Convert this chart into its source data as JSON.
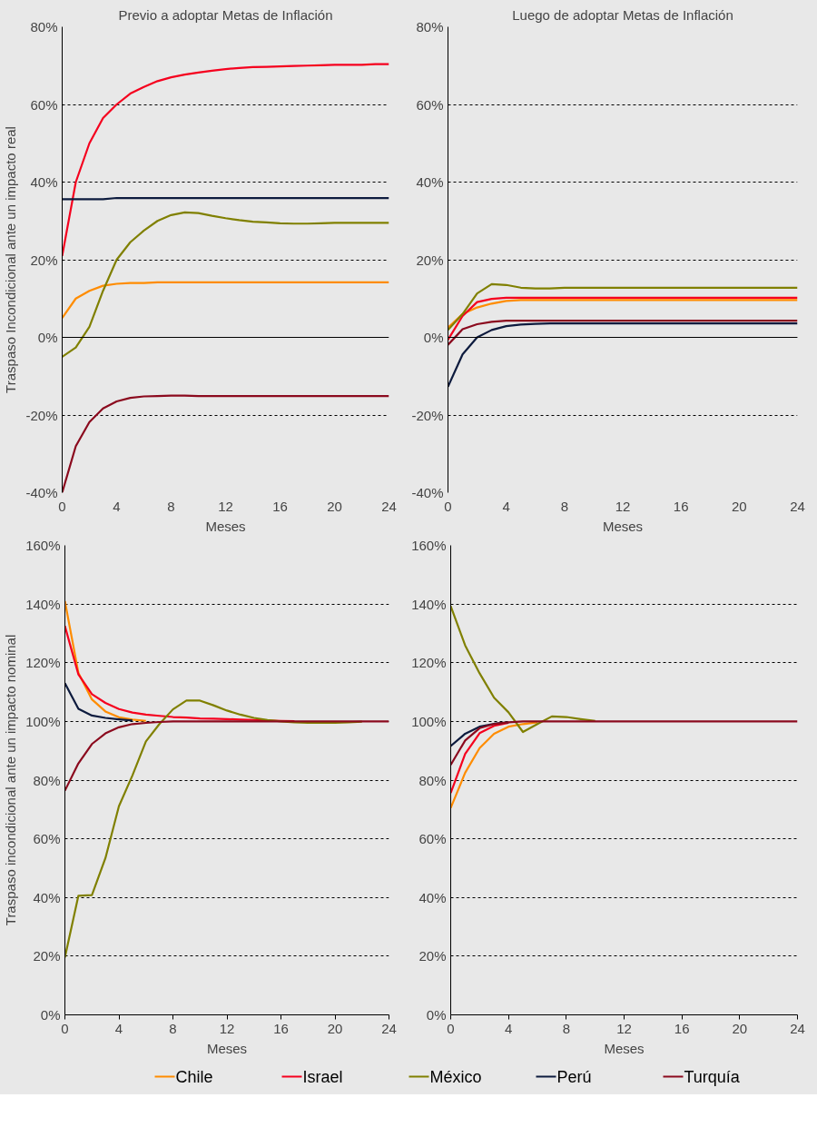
{
  "chart_data": [
    {
      "type": "line",
      "title": "Previo a adoptar Metas de Inflación",
      "xlabel": "Meses",
      "ylabel": "Traspaso Incondicional ante un impacto real",
      "x": [
        0,
        1,
        2,
        3,
        4,
        5,
        6,
        7,
        8,
        9,
        10,
        11,
        12,
        13,
        14,
        15,
        16,
        17,
        18,
        19,
        20,
        21,
        22,
        23,
        24
      ],
      "xlim": [
        0,
        24
      ],
      "xticks": [
        0,
        4,
        8,
        12,
        16,
        20,
        24
      ],
      "ylim": [
        -40,
        80
      ],
      "yticks": [
        {
          "value": -40,
          "label": "-40%"
        },
        {
          "value": -20,
          "label": "-20%"
        },
        {
          "value": 0,
          "label": "0%"
        },
        {
          "value": 20,
          "label": "20%"
        },
        {
          "value": 40,
          "label": "40%"
        },
        {
          "value": 60,
          "label": "60%"
        },
        {
          "value": 80,
          "label": "80%"
        }
      ],
      "grid": "y",
      "legend": "bottom",
      "ref_lines": [
        {
          "axis": "y",
          "value": 0,
          "color": "#000000",
          "line_style": "solid"
        }
      ],
      "series": [
        {
          "name": "Chile",
          "color": "#ff8c00",
          "values": [
            5,
            10,
            12,
            13.3,
            13.8,
            14,
            14,
            14.2,
            14.2,
            14.2,
            14.2,
            14.2,
            14.2,
            14.2,
            14.2,
            14.2,
            14.2,
            14.2,
            14.2,
            14.2,
            14.2,
            14.2,
            14.2,
            14.2,
            14.2
          ]
        },
        {
          "name": "Israel",
          "color": "#f5001e",
          "values": [
            21,
            40,
            50,
            56.5,
            60,
            62.8,
            64.5,
            66,
            67,
            67.7,
            68.2,
            68.7,
            69.1,
            69.4,
            69.6,
            69.7,
            69.8,
            69.9,
            70,
            70.1,
            70.2,
            70.2,
            70.2,
            70.4,
            70.4
          ]
        },
        {
          "name": "México",
          "color": "#808000",
          "values": [
            -5,
            -2.6,
            2.7,
            12,
            20,
            24.5,
            27.5,
            30,
            31.5,
            32.2,
            32,
            31.3,
            30.7,
            30.2,
            29.8,
            29.6,
            29.4,
            29.3,
            29.3,
            29.4,
            29.5,
            29.5,
            29.5,
            29.5,
            29.5
          ]
        },
        {
          "name": "Perú",
          "color": "#0d1b3e",
          "values": [
            35.6,
            35.6,
            35.6,
            35.6,
            35.9,
            35.9,
            35.9,
            35.9,
            35.9,
            35.9,
            35.9,
            35.9,
            35.9,
            35.9,
            35.9,
            35.9,
            35.9,
            35.9,
            35.9,
            35.9,
            35.9,
            35.9,
            35.9,
            35.9,
            35.9
          ]
        },
        {
          "name": "Turquía",
          "color": "#8b0a1e",
          "values": [
            -40,
            -28,
            -21.8,
            -18.3,
            -16.5,
            -15.6,
            -15.2,
            -15.1,
            -15,
            -15,
            -15.1,
            -15.1,
            -15.1,
            -15.1,
            -15.1,
            -15.1,
            -15.1,
            -15.1,
            -15.1,
            -15.1,
            -15.1,
            -15.1,
            -15.1,
            -15.1,
            -15.1
          ]
        }
      ]
    },
    {
      "type": "line",
      "title": "Luego de adoptar Metas de Inflación",
      "xlabel": "Meses",
      "x": [
        0,
        1,
        2,
        3,
        4,
        5,
        6,
        7,
        8,
        9,
        10,
        11,
        12,
        13,
        14,
        15,
        16,
        17,
        18,
        19,
        20,
        21,
        22,
        23,
        24
      ],
      "xlim": [
        0,
        24
      ],
      "xticks": [
        0,
        4,
        8,
        12,
        16,
        20,
        24
      ],
      "ylim": [
        -40,
        80
      ],
      "yticks": [
        {
          "value": -40,
          "label": "-40%"
        },
        {
          "value": -20,
          "label": "-20%"
        },
        {
          "value": 0,
          "label": "0%"
        },
        {
          "value": 20,
          "label": "20%"
        },
        {
          "value": 40,
          "label": "40%"
        },
        {
          "value": 60,
          "label": "60%"
        },
        {
          "value": 80,
          "label": "80%"
        }
      ],
      "grid": "y",
      "ref_lines": [
        {
          "axis": "y",
          "value": 0,
          "color": "#000000",
          "line_style": "solid"
        }
      ],
      "series": [
        {
          "color": "#ff8c00",
          "values": [
            2.5,
            6,
            7.7,
            8.7,
            9.4,
            9.6,
            9.6,
            9.6,
            9.6,
            9.6,
            9.6,
            9.6,
            9.6,
            9.6,
            9.6,
            9.6,
            9.6,
            9.6,
            9.6,
            9.6,
            9.6,
            9.6,
            9.6,
            9.6,
            9.6
          ]
        },
        {
          "color": "#f5001e",
          "values": [
            -0.6,
            5.5,
            9.1,
            9.9,
            10.2,
            10.2,
            10.2,
            10.2,
            10.2,
            10.2,
            10.2,
            10.2,
            10.2,
            10.2,
            10.2,
            10.2,
            10.2,
            10.2,
            10.2,
            10.2,
            10.2,
            10.2,
            10.2,
            10.2,
            10.2
          ]
        },
        {
          "color": "#808000",
          "values": [
            1.9,
            6,
            11.3,
            13.7,
            13.5,
            12.8,
            12.6,
            12.6,
            12.8,
            12.8,
            12.8,
            12.8,
            12.8,
            12.8,
            12.8,
            12.8,
            12.8,
            12.8,
            12.8,
            12.8,
            12.8,
            12.8,
            12.8,
            12.8,
            12.8
          ]
        },
        {
          "color": "#0d1b3e",
          "values": [
            -12.7,
            -4.4,
            0,
            1.9,
            2.9,
            3.3,
            3.5,
            3.6,
            3.6,
            3.6,
            3.6,
            3.6,
            3.6,
            3.6,
            3.6,
            3.6,
            3.6,
            3.6,
            3.6,
            3.6,
            3.6,
            3.6,
            3.6,
            3.6,
            3.6
          ]
        },
        {
          "color": "#8b0a1e",
          "values": [
            -1.9,
            2.1,
            3.4,
            4,
            4.3,
            4.3,
            4.3,
            4.3,
            4.3,
            4.3,
            4.3,
            4.3,
            4.3,
            4.3,
            4.3,
            4.3,
            4.3,
            4.3,
            4.3,
            4.3,
            4.3,
            4.3,
            4.3,
            4.3,
            4.3
          ]
        }
      ]
    },
    {
      "type": "line",
      "xlabel": "Meses",
      "ylabel": "Traspaso incondicional ante un impacto nominal",
      "x": [
        0,
        1,
        2,
        3,
        4,
        5,
        6,
        7,
        8,
        9,
        10,
        11,
        12,
        13,
        14,
        15,
        16,
        17,
        18,
        19,
        20,
        21,
        22,
        23,
        24
      ],
      "xlim": [
        0,
        24
      ],
      "xticks": [
        0,
        4,
        8,
        12,
        16,
        20,
        24
      ],
      "ylim": [
        0,
        160
      ],
      "yticks": [
        {
          "value": 0,
          "label": "0%"
        },
        {
          "value": 20,
          "label": "20%"
        },
        {
          "value": 40,
          "label": "40%"
        },
        {
          "value": 60,
          "label": "60%"
        },
        {
          "value": 80,
          "label": "80%"
        },
        {
          "value": 100,
          "label": "100%"
        },
        {
          "value": 120,
          "label": "120%"
        },
        {
          "value": 140,
          "label": "140%"
        },
        {
          "value": 160,
          "label": "160%"
        }
      ],
      "grid": "y",
      "series": [
        {
          "color": "#ff8c00",
          "values": [
            141,
            116.5,
            107.5,
            103.4,
            101.4,
            100.6,
            100.2,
            null,
            null,
            null,
            null,
            null,
            null,
            null,
            null,
            null,
            null,
            null,
            null,
            null,
            null,
            null,
            null,
            null,
            null
          ]
        },
        {
          "color": "#f5001e",
          "values": [
            132.5,
            116,
            109.3,
            106.3,
            104.2,
            103,
            102.3,
            101.9,
            101.5,
            101.3,
            101,
            100.9,
            100.8,
            100.6,
            100.5,
            100.3,
            100.2,
            100.1,
            null,
            null,
            null,
            null,
            null,
            null,
            null
          ]
        },
        {
          "color": "#808000",
          "values": [
            19.6,
            40.6,
            40.8,
            53.4,
            71.1,
            81.6,
            93.2,
            99.1,
            104.1,
            107.1,
            107.1,
            105.5,
            103.7,
            102.3,
            101.2,
            100.5,
            100,
            99.7,
            99.5,
            99.5,
            99.5,
            99.7,
            99.9,
            null,
            null
          ]
        },
        {
          "color": "#0d1b3e",
          "values": [
            113,
            104.3,
            102,
            101.2,
            100.7,
            100.3,
            null,
            null,
            null,
            null,
            null,
            null,
            null,
            null,
            null,
            null,
            null,
            null,
            null,
            null,
            null,
            null,
            null,
            null,
            null
          ]
        },
        {
          "color": "#8b0a1e",
          "values": [
            76.4,
            85.7,
            92.3,
            95.9,
            98,
            99.1,
            99.5,
            99.8,
            100,
            100,
            100,
            100,
            100,
            100,
            100,
            100,
            100,
            100,
            100,
            100,
            100,
            100,
            100,
            100,
            100
          ]
        }
      ]
    },
    {
      "type": "line",
      "xlabel": "Meses",
      "x": [
        0,
        1,
        2,
        3,
        4,
        5,
        6,
        7,
        8,
        9,
        10,
        11,
        12,
        13,
        14,
        15,
        16,
        17,
        18,
        19,
        20,
        21,
        22,
        23,
        24
      ],
      "xlim": [
        0,
        24
      ],
      "xticks": [
        0,
        4,
        8,
        12,
        16,
        20,
        24
      ],
      "ylim": [
        0,
        160
      ],
      "yticks": [
        {
          "value": 0,
          "label": "0%"
        },
        {
          "value": 20,
          "label": "20%"
        },
        {
          "value": 40,
          "label": "40%"
        },
        {
          "value": 60,
          "label": "60%"
        },
        {
          "value": 80,
          "label": "80%"
        },
        {
          "value": 100,
          "label": "100%"
        },
        {
          "value": 120,
          "label": "120%"
        },
        {
          "value": 140,
          "label": "140%"
        },
        {
          "value": 160,
          "label": "160%"
        }
      ],
      "grid": "y",
      "series": [
        {
          "color": "#ff8c00",
          "values": [
            70.5,
            82.5,
            90.9,
            95.8,
            98.2,
            99.1,
            99.7,
            null,
            null,
            null,
            null,
            null,
            null,
            null,
            null,
            null,
            null,
            null,
            null,
            null,
            null,
            null,
            null,
            null,
            null
          ]
        },
        {
          "color": "#f5001e",
          "values": [
            75.6,
            88.9,
            96,
            98.5,
            99.5,
            null,
            null,
            null,
            null,
            null,
            null,
            null,
            null,
            null,
            null,
            null,
            null,
            null,
            null,
            null,
            null,
            null,
            null,
            null,
            null
          ]
        },
        {
          "color": "#808000",
          "values": [
            139.3,
            125.9,
            116.4,
            108.1,
            103.1,
            96.4,
            99.1,
            101.7,
            101.5,
            100.8,
            100.2,
            null,
            null,
            null,
            null,
            null,
            null,
            null,
            null,
            null,
            null,
            null,
            null,
            null,
            null
          ]
        },
        {
          "color": "#0d1b3e",
          "values": [
            91.6,
            95.8,
            98.2,
            99.2,
            99.7,
            null,
            null,
            null,
            null,
            null,
            null,
            null,
            null,
            null,
            null,
            null,
            null,
            null,
            null,
            null,
            null,
            null,
            null,
            null,
            null
          ]
        },
        {
          "color": "#8b0a1e",
          "values": [
            85.2,
            93.5,
            97.7,
            99.1,
            99.7,
            100,
            100,
            100,
            100,
            100,
            100,
            100,
            100,
            100,
            100,
            100,
            100,
            100,
            100,
            100,
            100,
            100,
            100,
            100,
            100
          ]
        }
      ]
    }
  ]
}
